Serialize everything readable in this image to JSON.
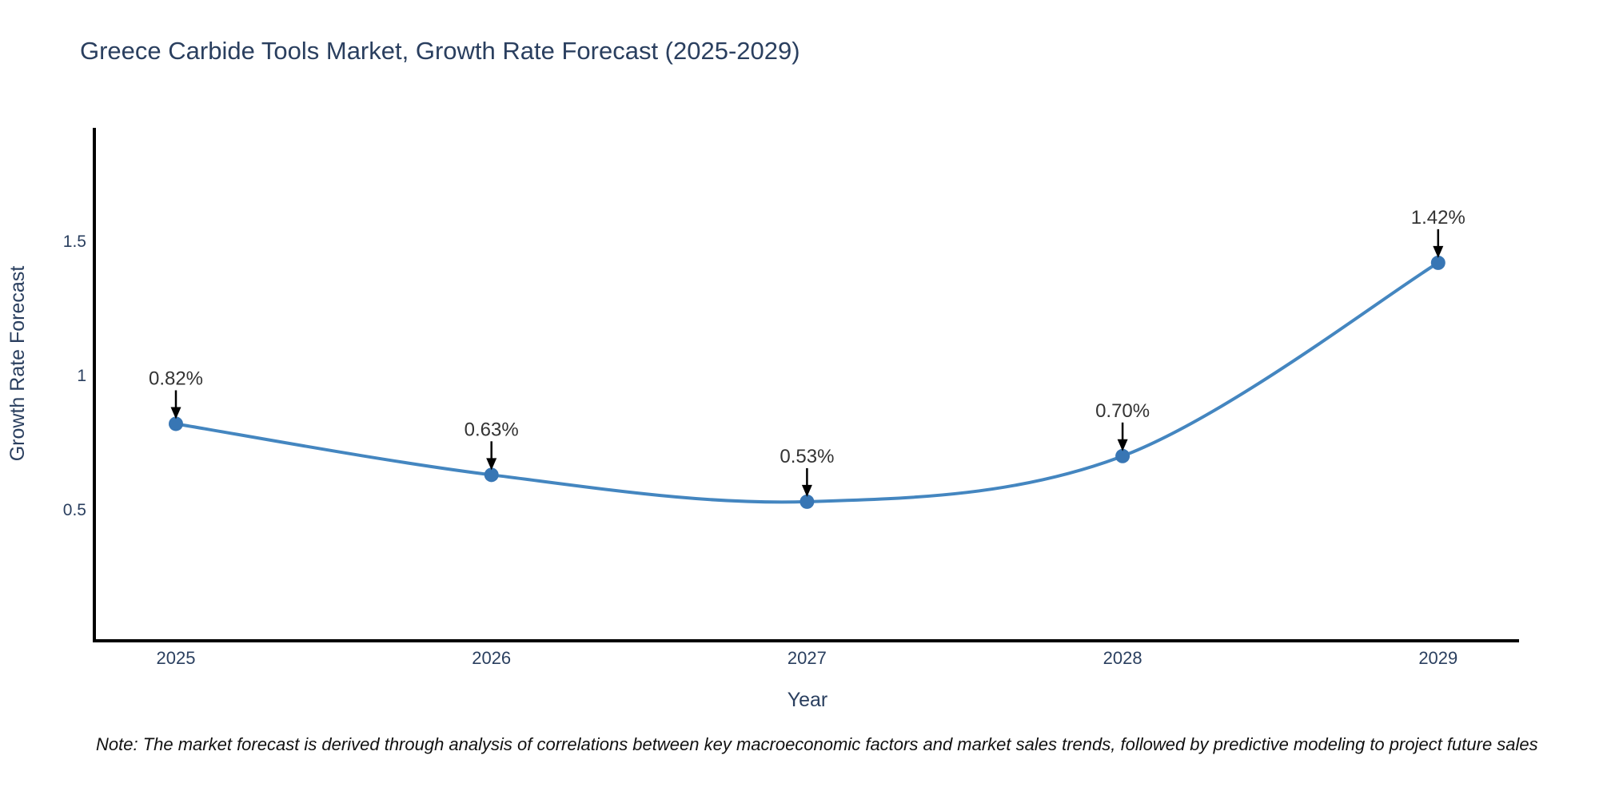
{
  "chart_data": {
    "type": "line",
    "title": "Greece Carbide Tools Market, Growth Rate Forecast (2025-2029)",
    "x": [
      "2025",
      "2026",
      "2027",
      "2028",
      "2029"
    ],
    "series": [
      {
        "name": "Growth Rate Forecast",
        "values": [
          0.82,
          0.63,
          0.53,
          0.7,
          1.42
        ],
        "point_labels": [
          "0.82%",
          "0.63%",
          "0.53%",
          "0.70%",
          "1.42%"
        ]
      }
    ],
    "xlabel": "Year",
    "ylabel": "Growth Rate Forecast",
    "yticks": [
      "0.5",
      "1",
      "1.5"
    ],
    "ytick_values": [
      0.5,
      1.0,
      1.5
    ],
    "ylim": [
      0.0,
      1.93
    ],
    "grid": false,
    "legend_position": "none",
    "smooth": true,
    "colors": {
      "line": "#4486c0",
      "marker": "#3876b4",
      "axis": "#000000",
      "chart_text": "#2a3f5f",
      "annotation_text": "#333333",
      "arrow": "#000000"
    }
  },
  "note": "Note: The market forecast is derived through analysis of correlations between key macroeconomic factors and market sales trends, followed by predictive modeling to project future sales"
}
